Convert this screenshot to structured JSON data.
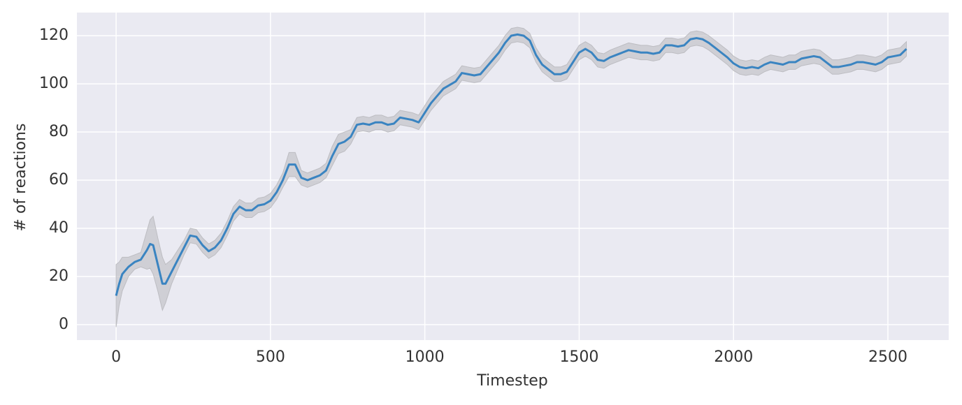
{
  "chart_data": {
    "type": "line",
    "xlabel": "Timestep",
    "ylabel": "# of reactions",
    "x": [
      0,
      10,
      20,
      40,
      60,
      80,
      100,
      110,
      120,
      135,
      150,
      160,
      180,
      200,
      220,
      240,
      260,
      280,
      300,
      320,
      340,
      360,
      380,
      400,
      420,
      440,
      460,
      480,
      500,
      520,
      540,
      560,
      580,
      600,
      620,
      640,
      660,
      680,
      700,
      720,
      740,
      760,
      780,
      800,
      820,
      840,
      860,
      880,
      900,
      920,
      940,
      960,
      980,
      1000,
      1020,
      1040,
      1060,
      1080,
      1100,
      1120,
      1140,
      1160,
      1180,
      1200,
      1220,
      1240,
      1260,
      1280,
      1300,
      1320,
      1340,
      1360,
      1380,
      1400,
      1420,
      1440,
      1460,
      1480,
      1500,
      1520,
      1540,
      1560,
      1580,
      1600,
      1620,
      1640,
      1660,
      1680,
      1700,
      1720,
      1740,
      1760,
      1780,
      1800,
      1820,
      1840,
      1860,
      1880,
      1900,
      1920,
      1940,
      1960,
      1980,
      2000,
      2020,
      2040,
      2060,
      2080,
      2100,
      2120,
      2140,
      2160,
      2180,
      2200,
      2220,
      2240,
      2260,
      2280,
      2300,
      2320,
      2340,
      2360,
      2380,
      2400,
      2420,
      2440,
      2460,
      2480,
      2500,
      2520,
      2540,
      2560
    ],
    "series": [
      {
        "color": "#3a84c1",
        "band_color": "#bdbdc2",
        "values": [
          12,
          17,
          21,
          24,
          26,
          27,
          31,
          33.5,
          33,
          25,
          17,
          17,
          22,
          27,
          32,
          37,
          36.5,
          33,
          30.5,
          32,
          35,
          40,
          46,
          49,
          47.5,
          47.5,
          49.5,
          50,
          51.5,
          55,
          60,
          66.5,
          66.5,
          61,
          60,
          61,
          62,
          64,
          70,
          75,
          76,
          78,
          83,
          83.5,
          83,
          84,
          84,
          83,
          83.5,
          86,
          85.5,
          85,
          84,
          88,
          92,
          95,
          98,
          99.5,
          101,
          104.5,
          104,
          103.5,
          104,
          107,
          110,
          113,
          117,
          120,
          120.5,
          120,
          118,
          112,
          108,
          106,
          104,
          104,
          105,
          109,
          113,
          114.5,
          113,
          110,
          109.5,
          111,
          112,
          113,
          114,
          113.5,
          113,
          113,
          112.5,
          113,
          116,
          116,
          115.5,
          116,
          118.5,
          119,
          118.5,
          117,
          115,
          113,
          111,
          108.5,
          107,
          106.5,
          107,
          106.5,
          108,
          109,
          108.5,
          108,
          109,
          109,
          110.5,
          111,
          111.5,
          111,
          109,
          107,
          107,
          107.5,
          108,
          109,
          109,
          108.5,
          108,
          109,
          111,
          111.5,
          112,
          114.5
        ],
        "lower": [
          -1,
          8,
          14,
          20,
          23,
          24,
          23,
          23.5,
          21,
          14,
          6,
          9,
          17,
          23,
          29,
          34,
          33.5,
          30,
          27.5,
          29,
          32,
          37,
          43,
          46,
          44.5,
          44.5,
          46.5,
          47,
          48.5,
          52,
          57,
          61.5,
          61.5,
          58,
          57,
          58,
          59,
          61,
          66,
          71,
          72,
          75,
          80,
          80.5,
          80,
          81,
          81,
          80,
          80.5,
          83,
          82.5,
          82,
          81,
          85,
          89,
          92,
          95,
          96.5,
          98,
          101.5,
          101,
          100.5,
          101,
          104,
          107,
          110,
          114,
          117,
          117.5,
          117,
          115,
          109,
          105,
          103,
          101,
          101,
          102,
          106,
          110,
          111.5,
          110,
          107,
          106.5,
          108,
          109,
          110,
          111,
          110.5,
          110,
          110,
          109.5,
          110,
          113,
          113,
          112.5,
          113,
          115.5,
          116,
          115.5,
          114,
          112,
          110,
          108,
          105.5,
          104,
          103.5,
          104,
          103.5,
          105,
          106,
          105.5,
          105,
          106,
          106,
          107.5,
          108,
          108.5,
          108,
          106,
          104,
          104,
          104.5,
          105,
          106,
          106,
          105.5,
          105,
          106,
          108,
          108.5,
          109,
          111.5
        ],
        "upper": [
          25,
          26,
          28,
          28,
          29,
          30,
          39,
          43.5,
          45,
          36,
          28,
          25,
          27,
          31,
          35,
          40,
          39.5,
          36,
          33.5,
          35,
          38,
          43,
          49,
          52,
          50.5,
          50.5,
          52.5,
          53,
          54.5,
          58,
          63,
          71.5,
          71.5,
          64,
          63,
          64,
          65,
          67,
          74,
          79,
          80,
          81,
          86,
          86.5,
          86,
          87,
          87,
          86,
          86.5,
          89,
          88.5,
          88,
          87,
          91,
          95,
          98,
          101,
          102.5,
          104,
          107.5,
          107,
          106.5,
          107,
          110,
          113,
          116,
          120,
          123,
          123.5,
          123,
          121,
          115,
          111,
          109,
          107,
          107,
          108,
          112,
          116,
          117.5,
          116,
          113,
          112.5,
          114,
          115,
          116,
          117,
          116.5,
          116,
          116,
          115.5,
          116,
          119,
          119,
          118.5,
          119,
          121.5,
          122,
          121.5,
          120,
          118,
          116,
          114,
          111.5,
          110,
          109.5,
          110,
          109.5,
          111,
          112,
          111.5,
          111,
          112,
          112,
          113.5,
          114,
          114.5,
          114,
          112,
          110,
          110,
          110.5,
          111,
          112,
          112,
          111.5,
          111,
          112,
          114,
          114.5,
          115,
          117.5
        ]
      }
    ],
    "xlim": [
      -127,
      2697
    ],
    "ylim": [
      -6.4,
      129.6
    ],
    "xticks": [
      0,
      500,
      1000,
      1500,
      2000,
      2500
    ],
    "yticks": [
      0,
      20,
      40,
      60,
      80,
      100,
      120
    ],
    "grid": true
  }
}
